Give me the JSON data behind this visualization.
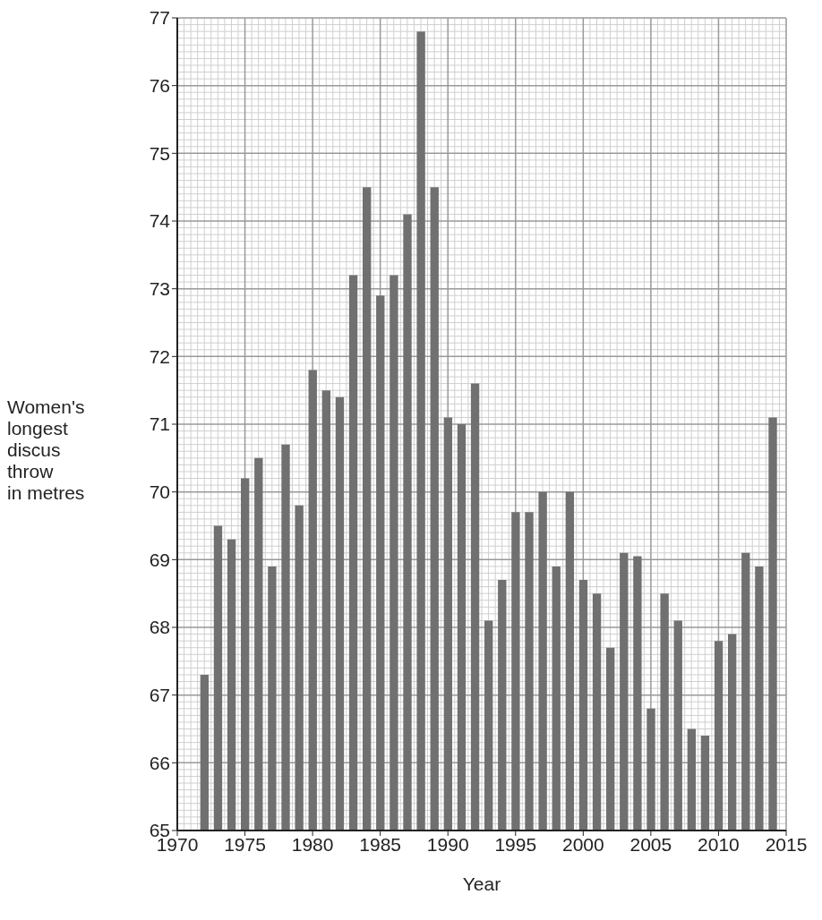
{
  "chart_data": {
    "type": "bar",
    "xlabel": "Year",
    "ylabel": "Women's\nlongest\ndiscus\nthrow\nin metres",
    "x": [
      1972,
      1973,
      1974,
      1975,
      1976,
      1977,
      1978,
      1979,
      1980,
      1981,
      1982,
      1983,
      1984,
      1985,
      1986,
      1987,
      1988,
      1989,
      1990,
      1991,
      1992,
      1993,
      1994,
      1995,
      1996,
      1997,
      1998,
      1999,
      2000,
      2001,
      2002,
      2003,
      2004,
      2005,
      2006,
      2007,
      2008,
      2009,
      2010,
      2011,
      2012,
      2013,
      2014
    ],
    "values": [
      67.3,
      69.5,
      69.3,
      70.2,
      70.5,
      68.9,
      70.7,
      69.8,
      71.8,
      71.5,
      71.4,
      73.2,
      74.5,
      72.9,
      73.2,
      74.1,
      76.8,
      74.5,
      71.1,
      71.0,
      71.6,
      68.1,
      68.7,
      69.7,
      69.7,
      70.0,
      68.9,
      70.0,
      68.7,
      68.5,
      67.7,
      69.1,
      69.05,
      66.8,
      68.5,
      68.1,
      66.5,
      66.4,
      67.8,
      67.9,
      69.1,
      68.9,
      71.1
    ],
    "color": "#707070",
    "xlim": [
      1970,
      2015
    ],
    "xticks": [
      1970,
      1975,
      1980,
      1985,
      1990,
      1995,
      2000,
      2005,
      2010,
      2015
    ],
    "ylim": [
      65,
      77
    ],
    "yticks": [
      65,
      66,
      67,
      68,
      69,
      70,
      71,
      72,
      73,
      74,
      75,
      76,
      77
    ],
    "grid": true
  }
}
